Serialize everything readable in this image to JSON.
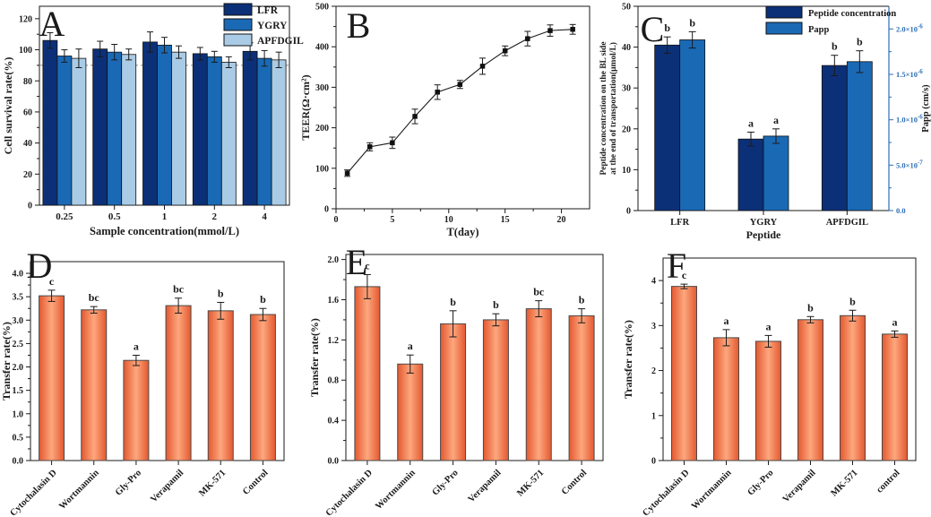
{
  "figure": {
    "background": "#ffffff"
  },
  "chart_data": [
    {
      "id": "A",
      "type": "grouped_bar",
      "panel_label": "A",
      "xlabel": "Sample concentration(mmol/L)",
      "ylabel": "Cell survival rate(%)",
      "ylim": [
        0,
        128
      ],
      "yticks": [
        0,
        20,
        40,
        60,
        80,
        100,
        120
      ],
      "ytick_decimals": 0,
      "categories": [
        "0.25",
        "0.5",
        "1",
        "2",
        "4"
      ],
      "series": [
        {
          "name": "LFR",
          "color": "#0c3078",
          "values": [
            106,
            100.5,
            105,
            97.5,
            99
          ],
          "errors": [
            5,
            5,
            6.5,
            4,
            5.5
          ]
        },
        {
          "name": "YGRY",
          "color": "#1a69b5",
          "values": [
            96,
            98.5,
            103,
            95.5,
            94.5
          ],
          "errors": [
            4,
            5,
            5,
            3.5,
            5
          ]
        },
        {
          "name": "APFDGIL",
          "color": "#a9cbe6",
          "values": [
            94.5,
            97,
            98.5,
            92,
            93.5
          ],
          "errors": [
            6,
            3.5,
            4,
            3.5,
            5
          ]
        }
      ],
      "ref_line": {
        "y": 90,
        "style": "dashed",
        "color": "#8c8c8c"
      },
      "legend_position": "top-right",
      "grid": false
    },
    {
      "id": "B",
      "type": "line",
      "panel_label": "B",
      "xlabel": "T(day)",
      "ylabel": "TEER(Ω·cm²)",
      "xlim": [
        0,
        22.5
      ],
      "xticks": [
        0,
        5,
        10,
        15,
        20
      ],
      "ylim": [
        0,
        500
      ],
      "yticks": [
        0,
        100,
        200,
        300,
        400,
        500
      ],
      "ytick_decimals": 0,
      "x": [
        1,
        3,
        5,
        7,
        9,
        11,
        13,
        15,
        17,
        19,
        21
      ],
      "y": [
        88,
        153,
        163,
        228,
        288,
        307,
        352,
        390,
        420,
        440,
        443
      ],
      "errors": [
        8,
        10,
        14,
        18,
        18,
        10,
        20,
        12,
        18,
        14,
        12
      ],
      "marker": "square",
      "line_color": "#1a1a1a",
      "grid": false
    },
    {
      "id": "C",
      "type": "dual_axis_bar",
      "panel_label": "C",
      "xlabel": "Peptide",
      "ylabel_left": [
        "Peptide concentration on the BL side",
        "at the end of transportation(μmol/L)"
      ],
      "ylabel_right": "Papp (cm/s)",
      "ylim_left": [
        0,
        50
      ],
      "yticks_left": [
        0,
        10,
        20,
        30,
        40,
        50
      ],
      "ylim_right": [
        0,
        2.25e-06
      ],
      "yticks_right": [
        {
          "v": 0,
          "label": "0.0"
        },
        {
          "v": 5e-07,
          "label": "5.0×10⁻⁷"
        },
        {
          "v": 1e-06,
          "label": "1.0×10⁻⁶"
        },
        {
          "v": 1.5e-06,
          "label": "1.5×10⁻⁶"
        },
        {
          "v": 2e-06,
          "label": "2.0×10⁻⁶"
        }
      ],
      "right_axis_color": "#2e6db4",
      "categories": [
        "LFR",
        "YGRY",
        "APFDGIL"
      ],
      "series": [
        {
          "name": "Peptide concentration",
          "axis": "left",
          "color": "#0c3078",
          "values": [
            40.5,
            17.5,
            35.5
          ],
          "errors": [
            2.0,
            1.7,
            2.5
          ],
          "letters": [
            "b",
            "a",
            "b"
          ]
        },
        {
          "name": "Papp",
          "axis": "right",
          "color": "#1a69b5",
          "values": [
            1.88e-06,
            8.2e-07,
            1.64e-06
          ],
          "errors": [
            9e-08,
            8e-08,
            1.2e-07
          ],
          "letters": [
            "b",
            "a",
            "b"
          ]
        }
      ],
      "grid": false
    },
    {
      "id": "D",
      "type": "bar",
      "panel_label": "D",
      "xlabel": "",
      "ylabel": "Transfer rate(%)",
      "ylim": [
        0,
        4.25
      ],
      "yticks": [
        0,
        0.5,
        1.0,
        1.5,
        2.0,
        2.5,
        3.0,
        3.5,
        4.0
      ],
      "ytick_decimals": 1,
      "categories": [
        "Cytochalasin D",
        "Wortmannin",
        "Gly-Pro",
        "Verapamil",
        "MK-571",
        "Control"
      ],
      "values": [
        3.52,
        3.22,
        2.14,
        3.31,
        3.2,
        3.12
      ],
      "errors": [
        0.12,
        0.07,
        0.11,
        0.16,
        0.18,
        0.13
      ],
      "letters": [
        "c",
        "bc",
        "a",
        "bc",
        "b",
        "b"
      ],
      "bar_color_edge": "#e4582f",
      "bar_color_center": "#fda77e",
      "bar_border": "#4a4a4a",
      "grid": false
    },
    {
      "id": "E",
      "type": "bar",
      "panel_label": "E",
      "xlabel": "",
      "ylabel": "Transfer rate(%)",
      "ylim": [
        0,
        2.05
      ],
      "yticks": [
        0,
        0.4,
        0.8,
        1.2,
        1.6,
        2.0
      ],
      "ytick_decimals": 1,
      "categories": [
        "Cytochalasin D",
        "Wortmannin",
        "Gly-Pro",
        "Verapamil",
        "MK-571",
        "Control"
      ],
      "values": [
        1.73,
        0.96,
        1.36,
        1.4,
        1.51,
        1.44
      ],
      "errors": [
        0.12,
        0.09,
        0.13,
        0.06,
        0.08,
        0.07
      ],
      "letters": [
        "c",
        "a",
        "b",
        "b",
        "bc",
        "b"
      ],
      "bar_color_edge": "#e4582f",
      "bar_color_center": "#fda77e",
      "bar_border": "#4a4a4a",
      "grid": false
    },
    {
      "id": "F",
      "type": "bar",
      "panel_label": "F",
      "xlabel": "",
      "ylabel": "Transfer rate(%)",
      "ylim": [
        0,
        4.5
      ],
      "yticks": [
        0,
        1,
        2,
        3,
        4
      ],
      "ytick_decimals": 0,
      "categories": [
        "Cytochalasin D",
        "Wortmannin",
        "Gly-Pro",
        "Verapamil",
        "MK-571",
        "control"
      ],
      "values": [
        3.87,
        2.73,
        2.65,
        3.13,
        3.22,
        2.81
      ],
      "errors": [
        0.05,
        0.18,
        0.13,
        0.07,
        0.12,
        0.07
      ],
      "letters": [
        "c",
        "a",
        "a",
        "b",
        "b",
        "a"
      ],
      "bar_color_edge": "#e4582f",
      "bar_color_center": "#fda77e",
      "bar_border": "#4a4a4a",
      "grid": false
    }
  ]
}
